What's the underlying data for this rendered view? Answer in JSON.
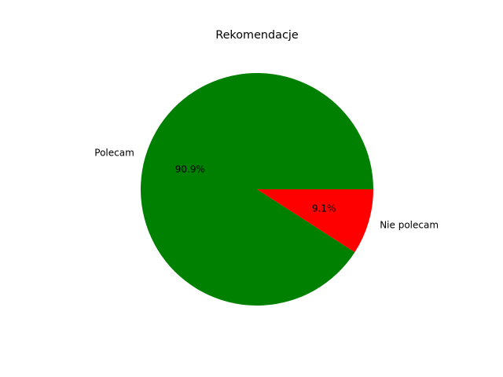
{
  "chart_data": {
    "type": "pie",
    "title": "Rekomendacje",
    "slices": [
      {
        "label": "Polecam",
        "value": 90.9,
        "pct_label": "90.9%",
        "color": "#008000"
      },
      {
        "label": "Nie polecam",
        "value": 9.1,
        "pct_label": "9.1%",
        "color": "#ff0000"
      }
    ],
    "start_angle_deg": 0,
    "direction": "counterclockwise",
    "legend": "none"
  }
}
